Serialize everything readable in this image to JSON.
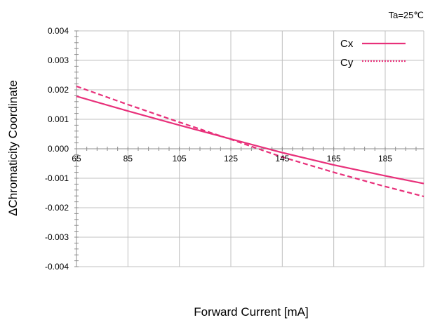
{
  "condition": "Ta=25℃",
  "colors": {
    "series": "#e8307a",
    "grid": "#c0c0c0",
    "axis": "#8c8c8c"
  },
  "chart_data": {
    "type": "line",
    "title": "",
    "condition": "Ta=25℃",
    "xlabel": "Forward Current [mA]",
    "ylabel": "ΔChromaticity Coordinate",
    "xlim": [
      65,
      200
    ],
    "ylim": [
      -0.004,
      0.004
    ],
    "x_ticks": [
      65,
      85,
      105,
      125,
      145,
      165,
      185
    ],
    "x_tick_labels": [
      "65",
      "85",
      "105",
      "125",
      "145",
      "165",
      "185"
    ],
    "y_ticks": [
      0.004,
      0.003,
      0.002,
      0.001,
      0.0,
      -0.001,
      -0.002,
      -0.003,
      -0.004
    ],
    "y_tick_labels": [
      "0.004",
      "0.003",
      "0.002",
      "0.001",
      "0.000",
      "-0.001",
      "-0.002",
      "-0.003",
      "-0.004"
    ],
    "grid": true,
    "legend_position": "top-right",
    "series": [
      {
        "name": "Cx",
        "style": "solid",
        "color": "#e8307a",
        "x": [
          65,
          85,
          105,
          125,
          145,
          165,
          185,
          200
        ],
        "y": [
          0.00178,
          0.00128,
          0.0008,
          0.00033,
          -0.00013,
          -0.00055,
          -0.00092,
          -0.00118
        ]
      },
      {
        "name": "Cy",
        "style": "dashed",
        "color": "#e8307a",
        "x": [
          65,
          85,
          105,
          125,
          145,
          165,
          185,
          200
        ],
        "y": [
          0.00212,
          0.0015,
          0.0009,
          0.00032,
          -0.00028,
          -0.0008,
          -0.00128,
          -0.00162
        ]
      }
    ]
  }
}
